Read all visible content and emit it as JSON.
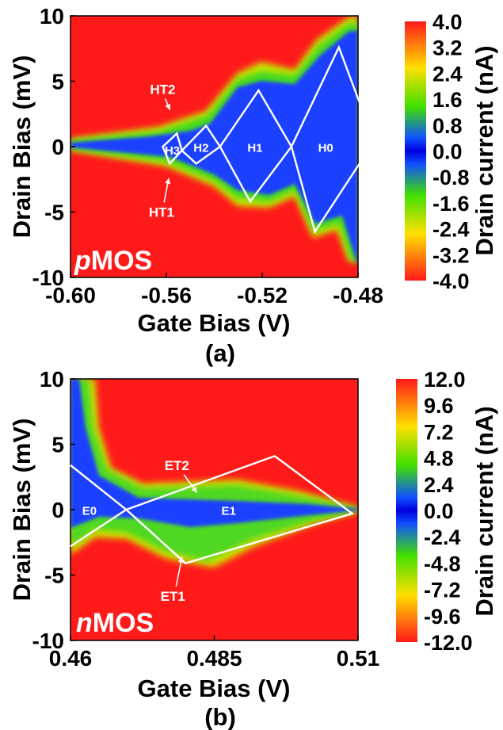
{
  "chart_data": [
    {
      "type": "heatmap",
      "panel_label": "(a)",
      "device_label_italic": "p",
      "device_label_rest": "MOS",
      "xlabel": "Gate Bias (V)",
      "ylabel": "Drain Bias (mV)",
      "xlim": [
        -0.6,
        -0.48
      ],
      "ylim": [
        -10,
        10
      ],
      "x_ticks": [
        -0.6,
        -0.56,
        -0.52,
        -0.48
      ],
      "x_tick_labels": [
        "-0.60",
        "-0.56",
        "-0.52",
        "-0.48"
      ],
      "y_ticks": [
        10,
        5,
        0,
        -5,
        -10
      ],
      "y_tick_labels": [
        "10",
        "5",
        "0",
        "-5",
        "-10"
      ],
      "colorbar": {
        "label": "Drain current (nA)",
        "range": [
          -4.0,
          4.0
        ],
        "tick_labels": [
          "4.0",
          "3.2",
          "2.4",
          "1.6",
          "0.8",
          "0.0",
          "-0.8",
          "-1.6",
          "-2.4",
          "-3.2",
          "-4.0"
        ]
      },
      "background_color": "#ff1a1a",
      "diamonds": [
        {
          "name": "H3",
          "left": [
            -0.5615,
            0
          ],
          "top": [
            -0.5556,
            1.0
          ],
          "right": [
            -0.5535,
            -0.3
          ],
          "bottom": [
            -0.5586,
            -1.3
          ]
        },
        {
          "name": "H2",
          "left": [
            -0.5535,
            -0.3
          ],
          "top": [
            -0.5434,
            1.6
          ],
          "right": [
            -0.5376,
            0
          ],
          "bottom": [
            -0.5475,
            -1.3
          ]
        },
        {
          "name": "H1",
          "left": [
            -0.5376,
            0
          ],
          "top": [
            -0.5215,
            4.3
          ],
          "right": [
            -0.5078,
            0
          ],
          "bottom": [
            -0.525,
            -4.2
          ]
        },
        {
          "name": "H0",
          "left": [
            -0.5078,
            0
          ],
          "top": [
            -0.488,
            7.6
          ],
          "right": [
            -0.4776,
            2.5
          ],
          "bottom": [
            -0.498,
            -6.5
          ],
          "extra": [
            -0.4776,
            -0.8
          ]
        }
      ],
      "region_labels": [
        {
          "text": "H3",
          "x": -0.5575,
          "y": -0.3
        },
        {
          "text": "H2",
          "x": -0.5455,
          "y": -0.1
        },
        {
          "text": "H1",
          "x": -0.523,
          "y": -0.1
        },
        {
          "text": "H0",
          "x": -0.4935,
          "y": -0.1
        }
      ],
      "transition_labels": [
        {
          "text": "HT2",
          "x": -0.5615,
          "y": 4.4,
          "arrow_to": [
            -0.5585,
            2.8
          ]
        },
        {
          "text": "HT1",
          "x": -0.562,
          "y": -5.0,
          "arrow_to": [
            -0.559,
            -2.4
          ]
        }
      ]
    },
    {
      "type": "heatmap",
      "panel_label": "(b)",
      "device_label_italic": "n",
      "device_label_rest": "MOS",
      "xlabel": "Gate Bias (V)",
      "ylabel": "Drain Bias (mV)",
      "xlim": [
        0.46,
        0.51
      ],
      "ylim": [
        -10,
        10
      ],
      "x_ticks": [
        0.46,
        0.485,
        0.51
      ],
      "x_tick_labels": [
        "0.46",
        "0.485",
        "0.51"
      ],
      "y_ticks": [
        10,
        5,
        0,
        -5,
        -10
      ],
      "y_tick_labels": [
        "10",
        "5",
        "0",
        "-5",
        "-10"
      ],
      "colorbar": {
        "label": "Drain current (nA)",
        "range": [
          -12.0,
          12.0
        ],
        "tick_labels": [
          "12.0",
          "9.6",
          "7.2",
          "4.8",
          "2.4",
          "0.0",
          "-2.4",
          "-4.8",
          "-7.2",
          "-9.6",
          "-12.0"
        ]
      },
      "background_color": "#ff1a1a",
      "diamonds": [
        {
          "name": "E1",
          "left": [
            0.4697,
            0
          ],
          "top": [
            0.4955,
            4.1
          ],
          "right": [
            0.509,
            -0.3
          ],
          "bottom": [
            0.48,
            -4.1
          ]
        }
      ],
      "edges": [
        {
          "from": [
            0.46,
            3.4
          ],
          "to": [
            0.4697,
            0
          ],
          "to2": [
            0.48,
            -4.1
          ]
        },
        {
          "from": [
            0.46,
            -2.8
          ],
          "to": [
            0.4697,
            0
          ]
        }
      ],
      "region_labels": [
        {
          "text": "E0",
          "x": 0.4633,
          "y": -0.1
        },
        {
          "text": "E1",
          "x": 0.4875,
          "y": -0.1
        }
      ],
      "transition_labels": [
        {
          "text": "ET2",
          "x": 0.4785,
          "y": 3.4,
          "arrow_to": [
            0.482,
            1.3
          ]
        },
        {
          "text": "ET1",
          "x": 0.4778,
          "y": -6.6,
          "arrow_to": [
            0.4794,
            -3.6
          ]
        }
      ]
    }
  ]
}
